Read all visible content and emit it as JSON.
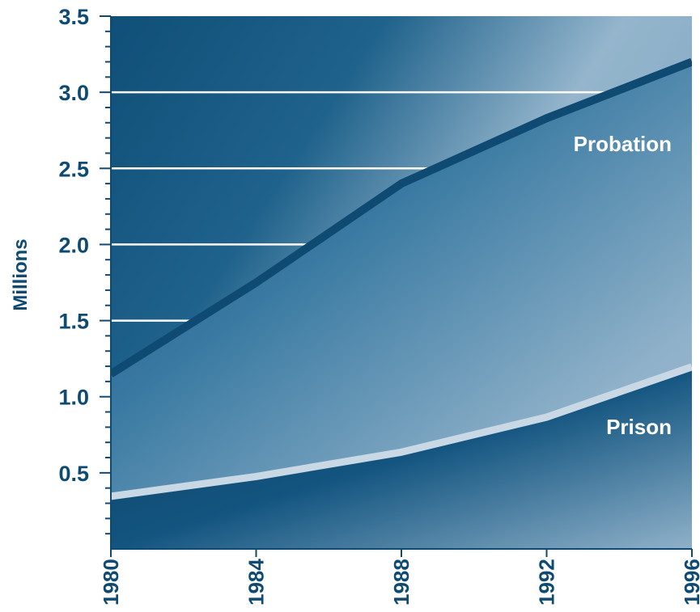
{
  "chart_data": {
    "type": "area",
    "title": "",
    "xlabel": "",
    "ylabel": "Millions",
    "x": [
      1980,
      1984,
      1988,
      1992,
      1996
    ],
    "x_tick_labels": [
      "1980",
      "1984",
      "1988",
      "1992",
      "1996"
    ],
    "y_tick_labels": [
      "0.5",
      "1.0",
      "1.5",
      "2.0",
      "2.5",
      "3.0",
      "3.5"
    ],
    "y_ticks": [
      0.5,
      1.0,
      1.5,
      2.0,
      2.5,
      3.0,
      3.5
    ],
    "xlim": [
      1980,
      1996
    ],
    "ylim": [
      0,
      3.5
    ],
    "grid": true,
    "series": [
      {
        "name": "Probation",
        "values": [
          1.15,
          1.75,
          2.4,
          2.83,
          3.2
        ],
        "color": "#0e4a72"
      },
      {
        "name": "Prison",
        "values": [
          0.33,
          0.46,
          0.62,
          0.85,
          1.18
        ],
        "color": "#c9d8e5"
      }
    ]
  },
  "colors": {
    "text": "#0e4a72",
    "panel_dark": "#0e4a72",
    "panel_light": "#93b4cb",
    "label_text": "#ffffff"
  }
}
